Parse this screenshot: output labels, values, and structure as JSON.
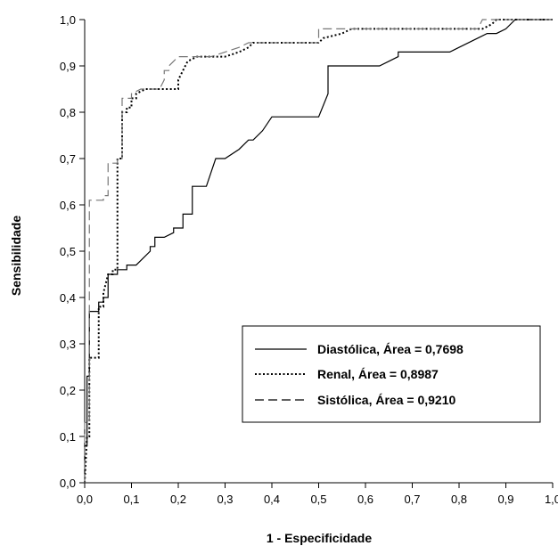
{
  "chart_data": {
    "type": "line",
    "xlabel": "1 - Especificidade",
    "ylabel": "Sensibilidade",
    "xlim": [
      0,
      1
    ],
    "ylim": [
      0,
      1
    ],
    "x_ticks": [
      "0,0",
      "0,1",
      "0,2",
      "0,3",
      "0,4",
      "0,5",
      "0,6",
      "0,7",
      "0,8",
      "0,9",
      "1,0"
    ],
    "y_ticks": [
      "0,0",
      "0,1",
      "0,2",
      "0,3",
      "0,4",
      "0,5",
      "0,6",
      "0,7",
      "0,8",
      "0,9",
      "1,0"
    ],
    "grid": false,
    "legend_position": "bottom-right",
    "series": [
      {
        "name": "Diastólica, Área = 0,7698",
        "line_style": "solid",
        "color": "#000000",
        "points": [
          [
            0,
            0
          ],
          [
            0,
            0.08
          ],
          [
            0.005,
            0.08
          ],
          [
            0.005,
            0.23
          ],
          [
            0.01,
            0.23
          ],
          [
            0.01,
            0.37
          ],
          [
            0.03,
            0.37
          ],
          [
            0.03,
            0.39
          ],
          [
            0.04,
            0.39
          ],
          [
            0.04,
            0.4
          ],
          [
            0.05,
            0.4
          ],
          [
            0.05,
            0.45
          ],
          [
            0.07,
            0.45
          ],
          [
            0.07,
            0.46
          ],
          [
            0.09,
            0.46
          ],
          [
            0.09,
            0.47
          ],
          [
            0.11,
            0.47
          ],
          [
            0.14,
            0.5
          ],
          [
            0.14,
            0.51
          ],
          [
            0.15,
            0.51
          ],
          [
            0.15,
            0.53
          ],
          [
            0.17,
            0.53
          ],
          [
            0.19,
            0.54
          ],
          [
            0.19,
            0.55
          ],
          [
            0.2,
            0.55
          ],
          [
            0.21,
            0.55
          ],
          [
            0.21,
            0.58
          ],
          [
            0.23,
            0.58
          ],
          [
            0.23,
            0.64
          ],
          [
            0.26,
            0.64
          ],
          [
            0.27,
            0.67
          ],
          [
            0.28,
            0.7
          ],
          [
            0.3,
            0.7
          ],
          [
            0.33,
            0.72
          ],
          [
            0.35,
            0.74
          ],
          [
            0.36,
            0.74
          ],
          [
            0.38,
            0.76
          ],
          [
            0.4,
            0.79
          ],
          [
            0.5,
            0.79
          ],
          [
            0.52,
            0.84
          ],
          [
            0.52,
            0.9
          ],
          [
            0.63,
            0.9
          ],
          [
            0.67,
            0.92
          ],
          [
            0.67,
            0.93
          ],
          [
            0.78,
            0.93
          ],
          [
            0.8,
            0.94
          ],
          [
            0.84,
            0.96
          ],
          [
            0.86,
            0.97
          ],
          [
            0.88,
            0.97
          ],
          [
            0.9,
            0.98
          ],
          [
            0.92,
            1.0
          ],
          [
            1.0,
            1.0
          ]
        ]
      },
      {
        "name": "Renal, Área = 0,8987",
        "line_style": "dotted",
        "color": "#000000",
        "points": [
          [
            0,
            0
          ],
          [
            0.005,
            0.1
          ],
          [
            0.01,
            0.1
          ],
          [
            0.01,
            0.27
          ],
          [
            0.02,
            0.27
          ],
          [
            0.03,
            0.27
          ],
          [
            0.03,
            0.38
          ],
          [
            0.04,
            0.38
          ],
          [
            0.04,
            0.41
          ],
          [
            0.05,
            0.45
          ],
          [
            0.06,
            0.45
          ],
          [
            0.06,
            0.46
          ],
          [
            0.07,
            0.46
          ],
          [
            0.07,
            0.7
          ],
          [
            0.08,
            0.7
          ],
          [
            0.08,
            0.8
          ],
          [
            0.09,
            0.8
          ],
          [
            0.09,
            0.81
          ],
          [
            0.1,
            0.81
          ],
          [
            0.1,
            0.83
          ],
          [
            0.11,
            0.83
          ],
          [
            0.11,
            0.84
          ],
          [
            0.13,
            0.85
          ],
          [
            0.2,
            0.85
          ],
          [
            0.2,
            0.87
          ],
          [
            0.21,
            0.89
          ],
          [
            0.22,
            0.91
          ],
          [
            0.24,
            0.92
          ],
          [
            0.3,
            0.92
          ],
          [
            0.33,
            0.93
          ],
          [
            0.35,
            0.94
          ],
          [
            0.36,
            0.95
          ],
          [
            0.5,
            0.95
          ],
          [
            0.51,
            0.96
          ],
          [
            0.55,
            0.97
          ],
          [
            0.57,
            0.98
          ],
          [
            0.85,
            0.98
          ],
          [
            0.87,
            0.99
          ],
          [
            0.88,
            1.0
          ],
          [
            1.0,
            1.0
          ]
        ]
      },
      {
        "name": "Sistólica, Área = 0,9210",
        "line_style": "dashed",
        "color": "#000000",
        "points": [
          [
            0,
            0
          ],
          [
            0,
            0.13
          ],
          [
            0.01,
            0.13
          ],
          [
            0.01,
            0.61
          ],
          [
            0.04,
            0.61
          ],
          [
            0.04,
            0.62
          ],
          [
            0.05,
            0.62
          ],
          [
            0.05,
            0.69
          ],
          [
            0.07,
            0.69
          ],
          [
            0.07,
            0.7
          ],
          [
            0.08,
            0.7
          ],
          [
            0.08,
            0.83
          ],
          [
            0.1,
            0.83
          ],
          [
            0.1,
            0.84
          ],
          [
            0.12,
            0.85
          ],
          [
            0.16,
            0.85
          ],
          [
            0.17,
            0.87
          ],
          [
            0.17,
            0.89
          ],
          [
            0.18,
            0.89
          ],
          [
            0.18,
            0.9
          ],
          [
            0.19,
            0.91
          ],
          [
            0.2,
            0.92
          ],
          [
            0.27,
            0.92
          ],
          [
            0.3,
            0.93
          ],
          [
            0.33,
            0.94
          ],
          [
            0.35,
            0.95
          ],
          [
            0.5,
            0.95
          ],
          [
            0.5,
            0.98
          ],
          [
            0.55,
            0.98
          ],
          [
            0.6,
            0.98
          ],
          [
            0.84,
            0.98
          ],
          [
            0.85,
            1.0
          ],
          [
            1.0,
            1.0
          ]
        ]
      }
    ]
  }
}
